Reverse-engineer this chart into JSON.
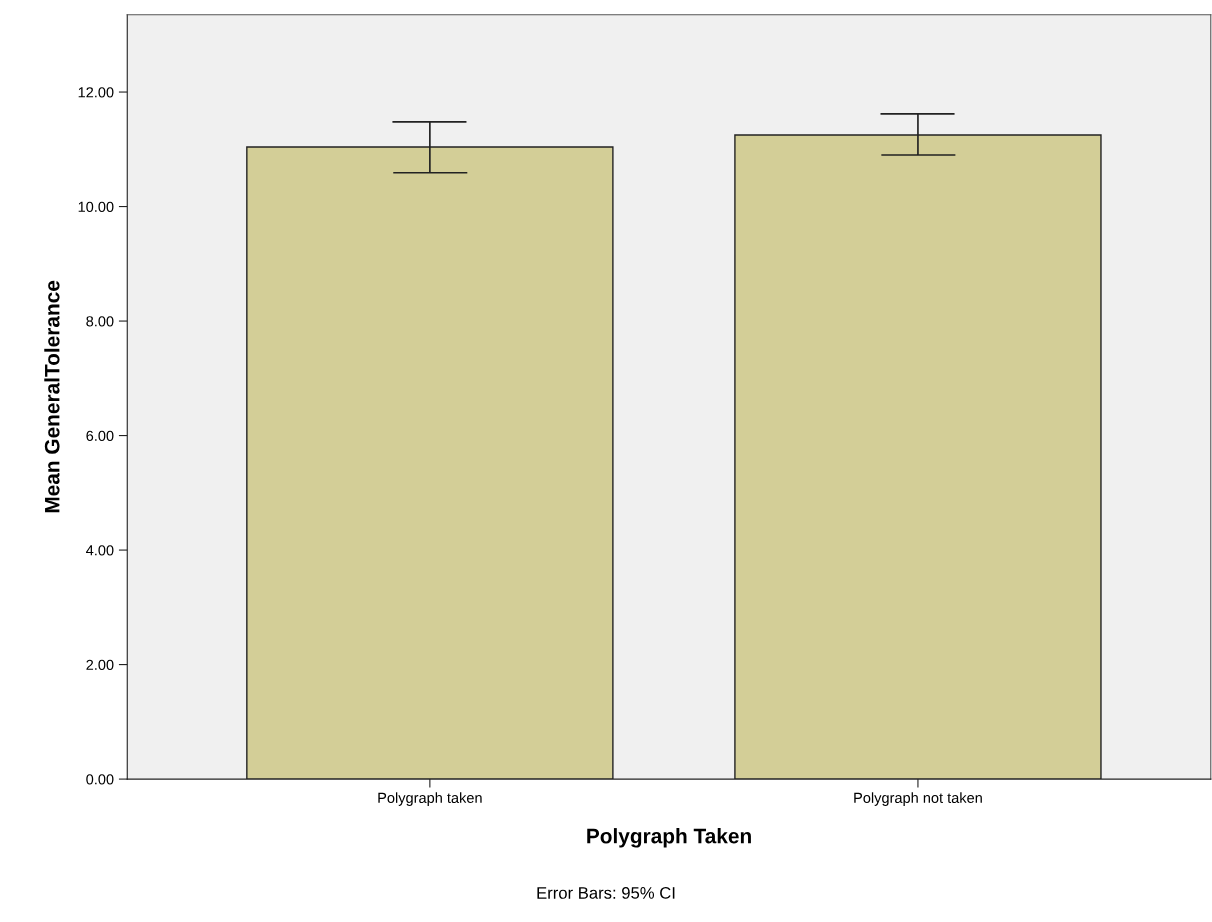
{
  "chart_data": {
    "type": "bar",
    "xlabel": "Polygraph Taken",
    "ylabel": "Mean GeneralTolerance",
    "categories": [
      "Polygraph taken",
      "Polygraph not taken"
    ],
    "values": [
      11.04,
      11.25
    ],
    "errors": [
      [
        10.59,
        11.48
      ],
      [
        10.9,
        11.62
      ]
    ],
    "color": "#d3ce97",
    "ylim": [
      0,
      13.35
    ],
    "yticks": [
      {
        "value": 0,
        "label": "0.00"
      },
      {
        "value": 2,
        "label": "2.00"
      },
      {
        "value": 4,
        "label": "4.00"
      },
      {
        "value": 6,
        "label": "6.00"
      },
      {
        "value": 8,
        "label": "8.00"
      },
      {
        "value": 10,
        "label": "10.00"
      },
      {
        "value": 12,
        "label": "12.00"
      }
    ],
    "grid": false,
    "legend": false,
    "annotations": [
      "Error Bars: 95% CI"
    ]
  }
}
